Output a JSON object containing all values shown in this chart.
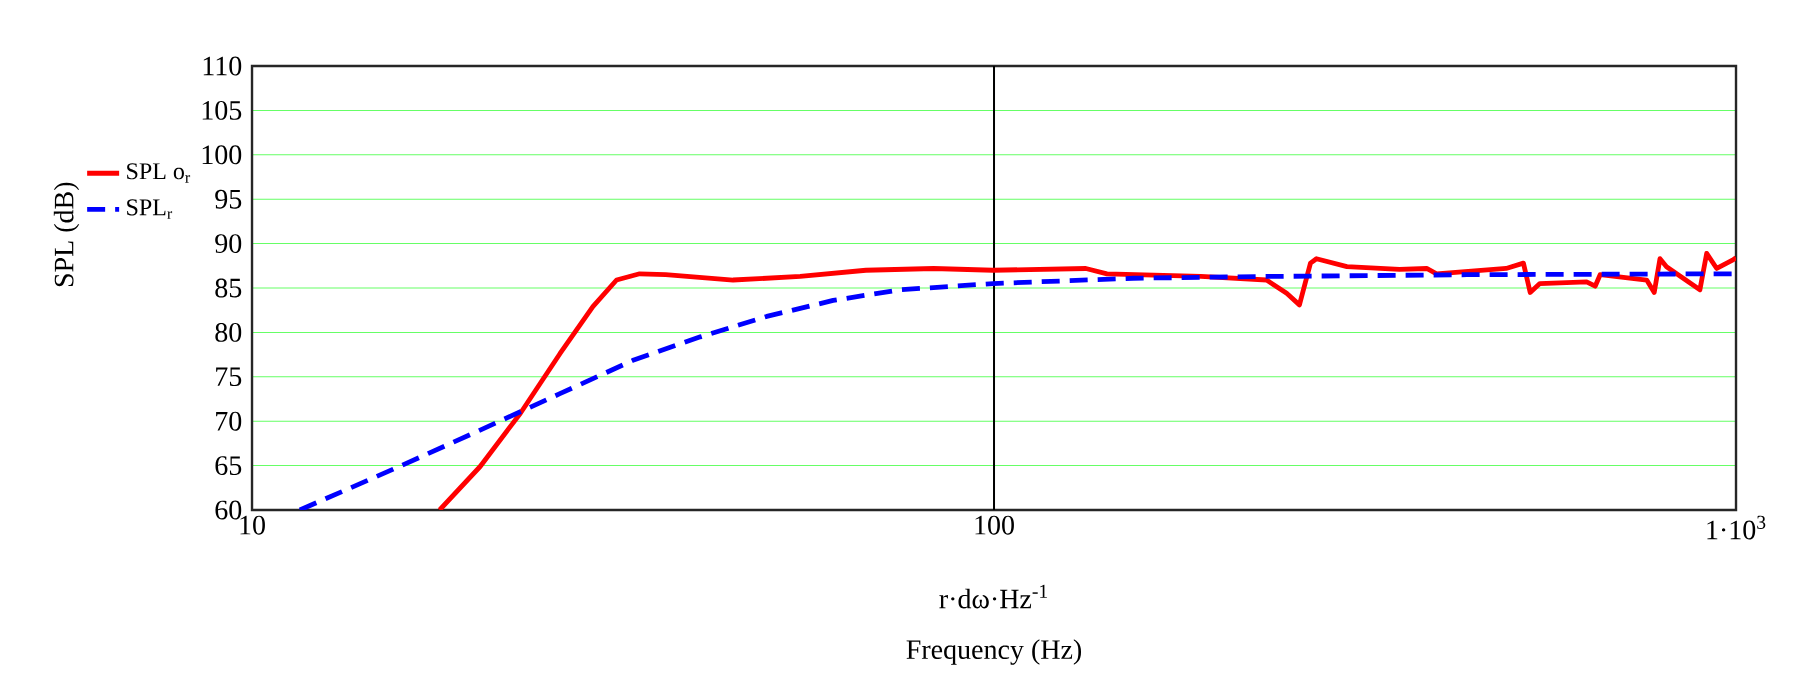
{
  "chart_data": {
    "type": "line",
    "xlabel": "Frequency (Hz)",
    "ylabel": "SPL (dB)",
    "annotations": [
      "r·dω·Hz$^{-1}$"
    ],
    "log": "x",
    "xlim": [
      10,
      1000
    ],
    "xticks": [
      10,
      100,
      {
        "value": 1000,
        "label": "1·10$^{3}$"
      }
    ],
    "ylim": [
      60,
      110
    ],
    "yticks": [
      60,
      65,
      70,
      75,
      80,
      85,
      90,
      95,
      100,
      105,
      110
    ],
    "grid": true,
    "legend": "left",
    "ref_lines": [
      {
        "axis": "x",
        "value": 100,
        "color": "#000000"
      }
    ],
    "series": [
      {
        "name": "SPL o$_{r}$",
        "color": "#ff0000",
        "line_style": "solid",
        "x": [
          17.9,
          20.3,
          23.0,
          26.0,
          28.8,
          31.0,
          33.3,
          36.1,
          44.5,
          54.8,
          67.2,
          82.9,
          99.7,
          133,
          142,
          190,
          233,
          248,
          258,
          267,
          272,
          299,
          352,
          383,
          395,
          490,
          517,
          528,
          544,
          629,
          646,
          656,
          758,
          776,
          790,
          806,
          894,
          913,
          942,
          992,
          1000
        ],
        "values": [
          60,
          64.9,
          70.9,
          77.6,
          82.9,
          85.9,
          86.6,
          86.5,
          85.9,
          86.3,
          87.0,
          87.2,
          87.0,
          87.2,
          86.6,
          86.3,
          85.9,
          84.4,
          83.1,
          87.8,
          88.3,
          87.4,
          87.1,
          87.2,
          86.6,
          87.2,
          87.8,
          84.5,
          85.5,
          85.7,
          85.2,
          86.5,
          85.9,
          84.5,
          88.3,
          87.4,
          84.8,
          88.9,
          87.2,
          88.2,
          88.4
        ]
      },
      {
        "name": "SPL$_{r}$",
        "color": "#0000ff",
        "line_style": "dashed",
        "x": [
          11.6,
          15.8,
          20.3,
          26.0,
          32.7,
          40.2,
          49.4,
          60.7,
          74.7,
          99.7,
          154,
          233,
          434,
          1000
        ],
        "values": [
          60,
          64.9,
          69.0,
          73.1,
          76.9,
          79.5,
          81.8,
          83.6,
          84.8,
          85.5,
          86.1,
          86.3,
          86.5,
          86.6
        ]
      }
    ]
  }
}
